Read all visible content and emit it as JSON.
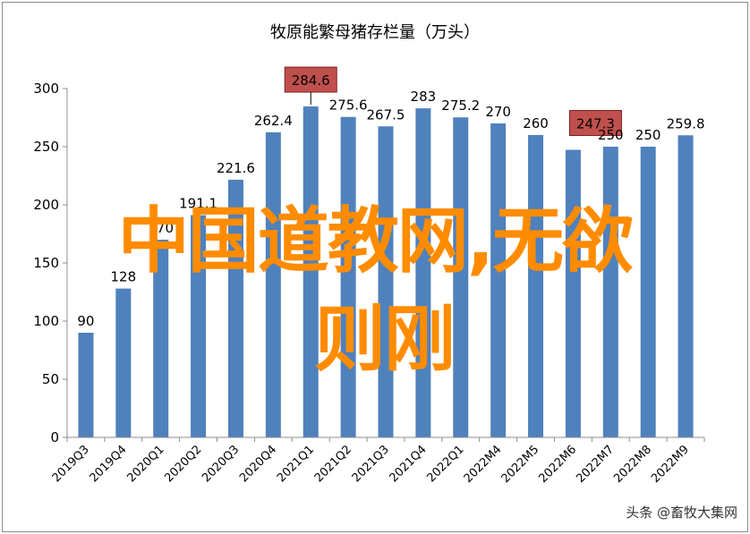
{
  "chart_data": {
    "type": "bar",
    "title": "牧原能繁母猪存栏量（万头）",
    "categories": [
      "2019Q3",
      "2019Q4",
      "2020Q1",
      "2020Q2",
      "2020Q3",
      "2020Q4",
      "2021Q1",
      "2021Q2",
      "2021Q3",
      "2021Q4",
      "2022Q1",
      "2022M4",
      "2022M5",
      "2022M6",
      "2022M7",
      "2022M8",
      "2022M9"
    ],
    "values": [
      90,
      128,
      170,
      191.1,
      221.6,
      262.4,
      284.6,
      275.6,
      267.5,
      283,
      275.2,
      270,
      260,
      247.3,
      250,
      250,
      259.8
    ],
    "labels": [
      "90",
      "128",
      "170",
      "191.1",
      "221.6",
      "262.4",
      "284.6",
      "275.6",
      "267.5",
      "283",
      "275.2",
      "270",
      "260",
      "247.3",
      "250",
      "250",
      "259.8"
    ],
    "highlighted": [
      "2021Q1",
      "2022M6"
    ],
    "ylim": [
      0,
      300
    ],
    "yticks": [
      "0",
      "50",
      "100",
      "150",
      "200",
      "250",
      "300"
    ],
    "xlabel": "",
    "ylabel": "",
    "grid": false,
    "bar_color": "#4f81bd",
    "highlight_color": "#c0504d"
  },
  "overlay": {
    "line1": "中国道教网,无欲",
    "line2": "则刚",
    "color": "#ff8c00"
  },
  "watermark": "头条 @畜牧大集网"
}
